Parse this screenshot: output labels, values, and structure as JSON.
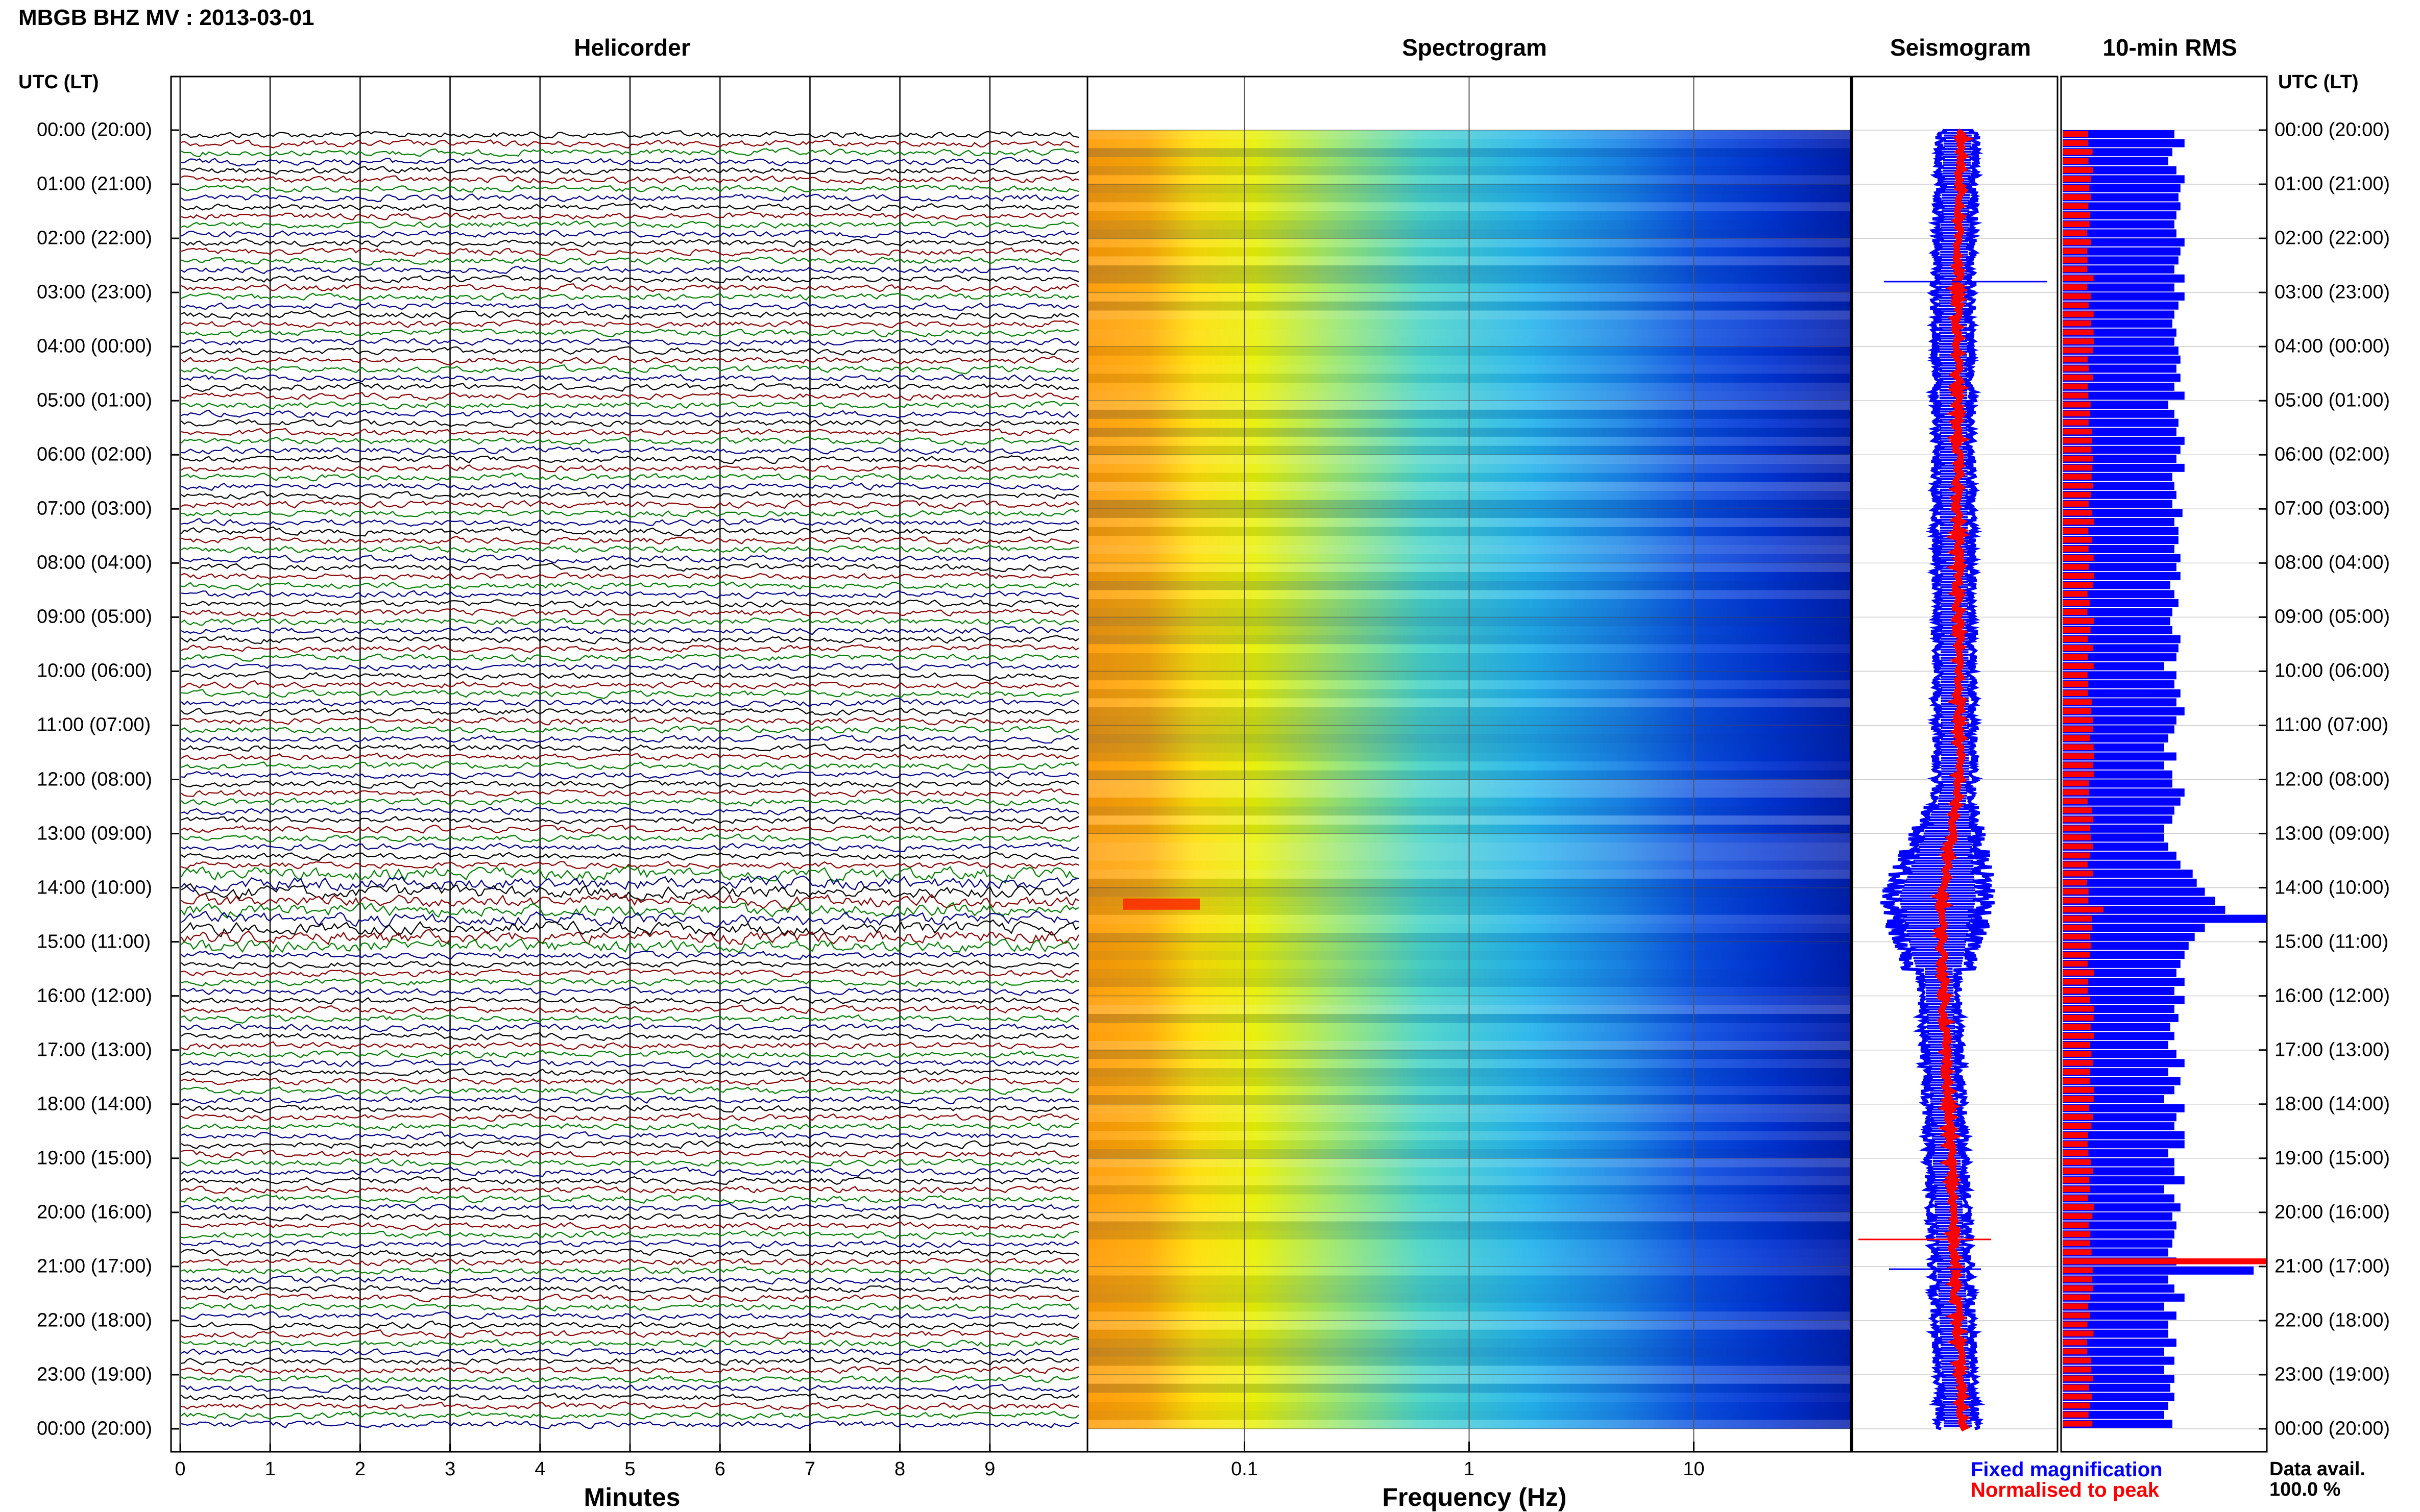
{
  "header": {
    "title": "MBGB BHZ MV : 2013-03-01",
    "utc_label": "UTC (LT)",
    "panels": {
      "helicorder": "Helicorder",
      "spectrogram": "Spectrogram",
      "seismogram": "Seismogram",
      "rms": "10-min RMS"
    }
  },
  "axes": {
    "minutes_label": "Minutes",
    "frequency_label": "Frequency (Hz)",
    "minute_ticks": [
      "0",
      "1",
      "2",
      "3",
      "4",
      "5",
      "6",
      "7",
      "8",
      "9"
    ],
    "frequency_ticks": [
      "0.1",
      "1",
      "10"
    ]
  },
  "time_labels": [
    "00:00 (20:00)",
    "01:00 (21:00)",
    "02:00 (22:00)",
    "03:00 (23:00)",
    "04:00 (00:00)",
    "05:00 (01:00)",
    "06:00 (02:00)",
    "07:00 (03:00)",
    "08:00 (04:00)",
    "09:00 (05:00)",
    "10:00 (06:00)",
    "11:00 (07:00)",
    "12:00 (08:00)",
    "13:00 (09:00)",
    "14:00 (10:00)",
    "15:00 (11:00)",
    "16:00 (12:00)",
    "17:00 (13:00)",
    "18:00 (14:00)",
    "19:00 (15:00)",
    "20:00 (16:00)",
    "21:00 (17:00)",
    "22:00 (18:00)",
    "23:00 (19:00)",
    "00:00 (20:00)"
  ],
  "legend": {
    "fixed": "Fixed magnification",
    "normalised": "Normalised to peak",
    "fixed_color": "#0000ff",
    "normalised_color": "#ff0000"
  },
  "availability": {
    "label": "Data avail.",
    "value": "100.0 %"
  },
  "colors": {
    "trace_cycle": [
      "#000000",
      "#8b0000",
      "#008000",
      "#00008b"
    ],
    "rms_fixed": "#0000ff",
    "rms_norm": "#ff0000"
  },
  "chart_data": {
    "type": "heatmap",
    "title": "MBGB BHZ MV : 2013-03-01",
    "helicorder": {
      "xlabel": "Minutes",
      "xlim": [
        0,
        10
      ],
      "rows": 144,
      "minutes_per_row": 10
    },
    "spectrogram": {
      "xlabel": "Frequency (Hz)",
      "scale": "log",
      "xlim": [
        0.02,
        50
      ]
    },
    "rms_10min": {
      "fixed_relative": [
        0.55,
        0.6,
        0.54,
        0.52,
        0.56,
        0.6,
        0.58,
        0.57,
        0.58,
        0.56,
        0.55,
        0.56,
        0.6,
        0.58,
        0.57,
        0.55,
        0.6,
        0.55,
        0.6,
        0.57,
        0.55,
        0.54,
        0.56,
        0.55,
        0.57,
        0.58,
        0.56,
        0.58,
        0.55,
        0.6,
        0.52,
        0.55,
        0.57,
        0.56,
        0.6,
        0.58,
        0.56,
        0.6,
        0.54,
        0.55,
        0.56,
        0.54,
        0.59,
        0.55,
        0.57,
        0.57,
        0.55,
        0.58,
        0.56,
        0.58,
        0.53,
        0.55,
        0.57,
        0.54,
        0.53,
        0.54,
        0.58,
        0.57,
        0.56,
        0.5,
        0.56,
        0.55,
        0.58,
        0.56,
        0.6,
        0.56,
        0.55,
        0.52,
        0.5,
        0.56,
        0.5,
        0.54,
        0.54,
        0.6,
        0.58,
        0.55,
        0.54,
        0.5,
        0.5,
        0.52,
        0.56,
        0.58,
        0.64,
        0.66,
        0.7,
        0.75,
        0.8,
        1.0,
        0.7,
        0.65,
        0.62,
        0.6,
        0.58,
        0.56,
        0.6,
        0.55,
        0.6,
        0.55,
        0.57,
        0.53,
        0.55,
        0.52,
        0.56,
        0.6,
        0.52,
        0.58,
        0.55,
        0.5,
        0.6,
        0.56,
        0.55,
        0.6,
        0.6,
        0.52,
        0.55,
        0.55,
        0.6,
        0.5,
        0.55,
        0.58,
        0.54,
        0.56,
        0.55,
        0.54,
        0.52,
        0.56,
        0.94,
        0.52,
        0.55,
        0.6,
        0.5,
        0.56,
        0.52,
        0.52,
        0.56,
        0.5,
        0.55,
        0.5,
        0.55,
        0.53,
        0.55,
        0.52,
        0.5,
        0.54
      ],
      "normalised_peak_rows": [
        86,
        125
      ]
    }
  }
}
